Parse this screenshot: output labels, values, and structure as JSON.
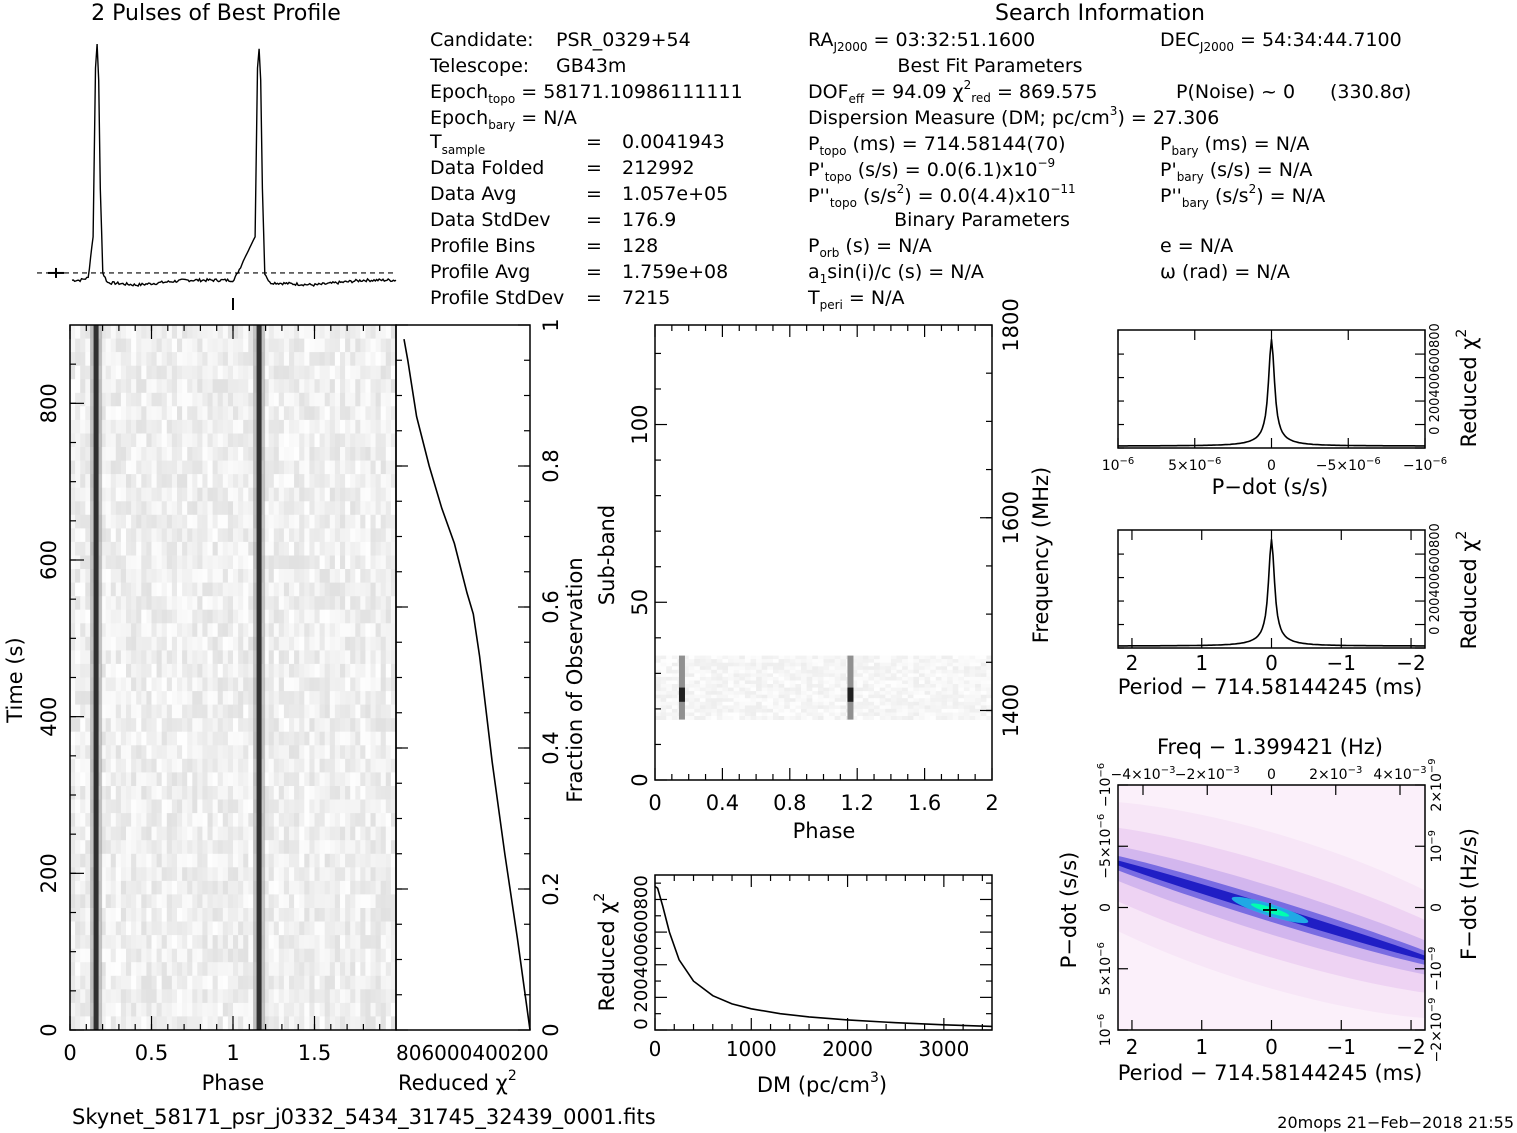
{
  "profile_title": "2 Pulses of Best Profile",
  "search_title": "Search Information",
  "info": {
    "candidate_label": "Candidate:",
    "candidate": "PSR_0329+54",
    "telescope_label": "Telescope:",
    "telescope": "GB43m",
    "epoch_topo": "58171.10986111111",
    "epoch_bary": "N/A",
    "t_sample": "0.0041943",
    "data_folded_label": "Data Folded",
    "data_folded": "212992",
    "data_avg_label": "Data Avg",
    "data_avg": "1.057e+05",
    "data_stddev_label": "Data StdDev",
    "data_stddev": "176.9",
    "profile_bins_label": "Profile Bins",
    "profile_bins": "128",
    "profile_avg_label": "Profile Avg",
    "profile_avg": "1.759e+08",
    "profile_stddev_label": "Profile StdDev",
    "profile_stddev": "7215",
    "ra": "03:32:51.1600",
    "dec": "54:34:44.7100",
    "best_fit_title": "Best Fit Parameters",
    "dof_eff": "94.09",
    "chi2_red": "869.575",
    "p_noise": "P(Noise) ~ 0",
    "sigma": "(330.8σ)",
    "dm_label": "Dispersion Measure (DM; pc/cm",
    "dm": "= 27.306",
    "p_topo": "714.58144(70)",
    "p_bary": "N/A",
    "pdot_topo": "0.0(6.1)x10",
    "pdot_topo_exp": "−9",
    "pdot_bary": "N/A",
    "pddot_topo": "0.0(4.4)x10",
    "pddot_topo_exp": "−11",
    "pddot_bary": "N/A",
    "binary_title": "Binary Parameters",
    "p_orb": "N/A",
    "e": "e = N/A",
    "a1sini": "N/A",
    "omega": "ω (rad) = N/A",
    "t_peri": "N/A"
  },
  "footer": {
    "filename": "Skynet_58171_psr_j0332_5434_31745_32439_0001.fits",
    "stamp": "20mops 21−Feb−2018 21:55"
  },
  "colors": {
    "axis": "#000000",
    "greyscale_low": "#ffffff",
    "greyscale_high": "#000000",
    "ppdot_low": "#fbf0fa",
    "ppdot_mid": "#1010c8",
    "ppdot_high": "#00ffc0"
  },
  "chart_data": [
    {
      "type": "line",
      "name_id": "profile",
      "title": "2 Pulses of Best Profile",
      "x": [
        0,
        0.05,
        0.1,
        0.13,
        0.145,
        0.155,
        0.165,
        0.175,
        0.19,
        0.22,
        0.4,
        0.7,
        1.0,
        1.13,
        1.145,
        1.155,
        1.165,
        1.175,
        1.19,
        1.22,
        1.5,
        1.8,
        2.0
      ],
      "y": [
        0.02,
        0.02,
        0.03,
        0.2,
        0.9,
        1.0,
        0.85,
        0.4,
        0.05,
        0.01,
        0.0,
        0.02,
        0.02,
        0.2,
        0.9,
        0.98,
        0.85,
        0.4,
        0.05,
        0.01,
        0.0,
        0.02,
        0.02
      ],
      "baseline": 0.05
    },
    {
      "type": "heatmap",
      "name_id": "time-phase",
      "xlabel": "Phase",
      "ylabel": "Time (s)",
      "xlim": [
        0,
        2
      ],
      "ylim": [
        0,
        900
      ],
      "xticks": [
        0,
        0.5,
        1,
        1.5
      ],
      "xtick_labels": [
        "0",
        "0.5",
        "1",
        "1.5"
      ],
      "yticks": [
        0,
        200,
        400,
        600,
        800
      ],
      "pulse_phases": [
        0.16,
        1.16
      ]
    },
    {
      "type": "line",
      "name_id": "time-chi2",
      "xlabel": "Reduced χ²",
      "ylabel": "Fraction of Observation",
      "xtick_labels": "806000400200",
      "ylim": [
        0,
        1
      ],
      "yticks": [
        0,
        0.2,
        0.4,
        0.6,
        0.8,
        1
      ],
      "x": [
        0.0,
        0.03,
        0.1,
        0.2,
        0.3,
        0.4,
        0.5,
        0.55,
        0.6,
        0.7,
        0.8,
        0.9,
        1.0
      ],
      "y": [
        0.98,
        0.95,
        0.87,
        0.8,
        0.74,
        0.69,
        0.62,
        0.59,
        0.53,
        0.38,
        0.25,
        0.13,
        0.0
      ]
    },
    {
      "type": "heatmap",
      "name_id": "subband-phase",
      "xlabel": "Phase",
      "ylabel": "Sub-band",
      "ylabel_right": "Frequency (MHz)",
      "xlim": [
        0,
        2
      ],
      "ylim": [
        0,
        128
      ],
      "xticks": [
        0,
        0.4,
        0.8,
        1.2,
        1.6,
        2
      ],
      "xtick_labels": [
        "0",
        "0.4",
        "0.8",
        "1.2",
        "1.6",
        "2"
      ],
      "yticks": [
        0,
        50,
        100
      ],
      "freq_ticks": [
        1400,
        1600,
        1800
      ],
      "active_band": [
        17,
        35
      ],
      "pulse_phases": [
        0.16,
        1.16
      ]
    },
    {
      "type": "line",
      "name_id": "dm-chi2",
      "xlabel": "DM (pc/cm",
      "ylabel": "Reduced χ²",
      "xlim": [
        0,
        3500
      ],
      "ylim": [
        0,
        950
      ],
      "xticks": [
        0,
        1000,
        2000,
        3000
      ],
      "ytick_labels": "0 200400600800",
      "x": [
        0,
        27,
        80,
        150,
        250,
        400,
        600,
        800,
        1000,
        1300,
        1600,
        2000,
        2500,
        3000,
        3500
      ],
      "y": [
        880,
        869,
        760,
        600,
        430,
        300,
        210,
        160,
        130,
        100,
        80,
        62,
        45,
        32,
        22
      ]
    },
    {
      "type": "line",
      "name_id": "pdot-chi2",
      "xlabel": "P−dot (s/s)",
      "ylabel": "Reduced χ²",
      "ytick_labels": "0 200400600800",
      "xtick_labels": [
        "10",
        "5×10",
        "0",
        "−5×10",
        "−10"
      ],
      "xtick_exp": "−6",
      "x": [
        1e-05,
        0
      ],
      "y": [
        0,
        869
      ]
    },
    {
      "type": "line",
      "name_id": "period-chi2",
      "xlabel": "Period − 714.58144245 (ms)",
      "ylabel": "Reduced χ²",
      "ytick_labels": "0 200400600800",
      "xlim": [
        2.2,
        -2.2
      ],
      "xticks": [
        2,
        1,
        0,
        -1,
        -2
      ],
      "xtick_labels": [
        "2",
        "1",
        "0",
        "−1",
        "−2"
      ],
      "x": [
        0
      ],
      "y": [
        869
      ]
    },
    {
      "type": "heatmap",
      "name_id": "ppdot",
      "title": "Freq − 1.399421 (Hz)",
      "xlabel": "Period − 714.58144245 (ms)",
      "ylabel": "P−dot (s/s)",
      "ylabel_right": "F−dot (Hz/s)",
      "xlim": [
        2.2,
        -2.2
      ],
      "xticks": [
        2,
        1,
        0,
        -1,
        -2
      ],
      "xtick_labels": [
        "2",
        "1",
        "0",
        "−1",
        "−2"
      ],
      "top_tick_labels": [
        "−4×10",
        "−2×10",
        "0",
        "2×10",
        "4×10"
      ],
      "top_tick_exp": "−3",
      "left_tick_labels": [
        "10",
        "5×10",
        "0",
        "−5×10",
        "−10"
      ],
      "left_tick_exp": "−6",
      "right_tick_labels": [
        "−2×10",
        "−10",
        "0",
        "10",
        "2×10"
      ],
      "right_tick_exp": "−9"
    }
  ]
}
